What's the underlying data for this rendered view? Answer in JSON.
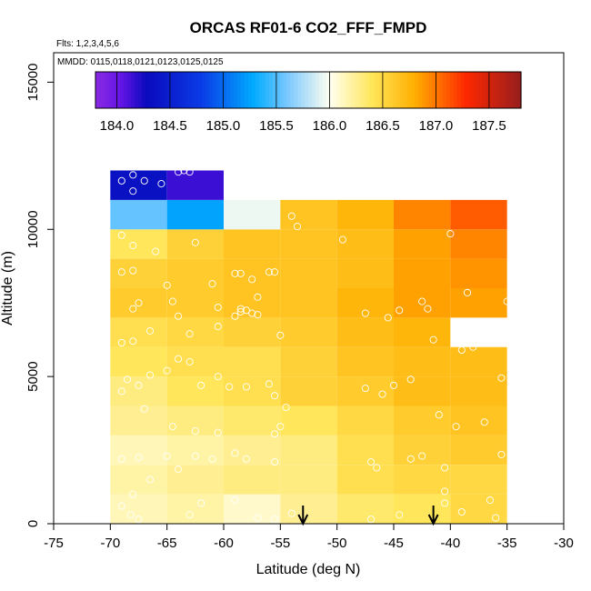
{
  "chart_data": {
    "type": "heatmap",
    "title": "ORCAS RF01-6 CO2_FFF_FMPD",
    "flights_note": "Flts: 1,2,3,4,5,6",
    "dates_note": "MMDD: 0115,0118,0121,0123,0125,0125",
    "xlabel": "Latitude (deg N)",
    "ylabel": "Altitude (m)",
    "xlim": [
      -75,
      -30
    ],
    "ylim": [
      0,
      16000
    ],
    "xticks": [
      -75,
      -70,
      -65,
      -60,
      -55,
      -50,
      -45,
      -40,
      -35,
      -30
    ],
    "xtick_labels": [
      "-75",
      "-70",
      "-65",
      "-60",
      "-55",
      "-50",
      "-45",
      "-40",
      "-35",
      "-30"
    ],
    "yticks": [
      0,
      5000,
      10000,
      15000
    ],
    "ytick_labels": [
      "0",
      "5000",
      "10000",
      "15000"
    ],
    "colorbar": {
      "min": 183.8,
      "max": 187.8,
      "ticks": [
        184.0,
        184.5,
        185.0,
        185.5,
        186.0,
        186.5,
        187.0,
        187.5
      ],
      "tick_labels": [
        "184.0",
        "184.5",
        "185.0",
        "185.5",
        "186.0",
        "186.5",
        "187.0",
        "187.5"
      ]
    },
    "lat_bins": [
      -70,
      -65,
      -60,
      -55,
      -50,
      -45,
      -40,
      -35
    ],
    "alt_bins": [
      0,
      1000,
      2000,
      3000,
      4000,
      5000,
      6000,
      7000,
      8000,
      9000,
      10000,
      11000,
      12000
    ],
    "cells": [
      [
        186.15,
        186.2,
        186.1,
        186.25,
        186.35,
        186.4,
        186.5
      ],
      [
        186.2,
        186.25,
        186.3,
        186.3,
        186.45,
        186.5,
        186.5
      ],
      [
        186.15,
        186.2,
        186.25,
        186.3,
        186.45,
        186.55,
        186.6
      ],
      [
        186.25,
        186.3,
        186.35,
        186.4,
        186.5,
        186.6,
        186.65
      ],
      [
        186.3,
        186.4,
        186.45,
        186.55,
        186.6,
        186.7,
        186.7
      ],
      [
        186.4,
        186.45,
        186.45,
        186.55,
        186.65,
        186.7,
        186.7
      ],
      [
        186.45,
        186.5,
        186.55,
        186.6,
        186.7,
        186.75,
        null
      ],
      [
        186.6,
        186.6,
        186.65,
        186.65,
        186.75,
        186.85,
        186.85
      ],
      [
        186.55,
        186.6,
        186.65,
        186.65,
        186.7,
        186.85,
        186.9
      ],
      [
        186.4,
        186.55,
        186.65,
        186.65,
        186.7,
        186.85,
        186.95
      ],
      [
        185.55,
        185.25,
        185.95,
        186.65,
        186.75,
        186.95,
        187.1
      ],
      [
        184.35,
        184.15,
        null,
        null,
        null,
        null,
        null
      ]
    ],
    "sample_points": [
      [
        -68.2,
        300
      ],
      [
        -67.5,
        150
      ],
      [
        -69,
        600
      ],
      [
        -68,
        1000
      ],
      [
        -66.5,
        1500
      ],
      [
        -63,
        300
      ],
      [
        -62,
        700
      ],
      [
        -57,
        200
      ],
      [
        -59,
        800
      ],
      [
        -55.5,
        150
      ],
      [
        -54,
        350
      ],
      [
        -47,
        150
      ],
      [
        -44.5,
        300
      ],
      [
        -40.5,
        700
      ],
      [
        -39,
        400
      ],
      [
        -36.5,
        800
      ],
      [
        -36,
        200
      ],
      [
        -69,
        2200
      ],
      [
        -67.5,
        2250
      ],
      [
        -65,
        2300
      ],
      [
        -64,
        1850
      ],
      [
        -62.5,
        2300
      ],
      [
        -61,
        2200
      ],
      [
        -59,
        2400
      ],
      [
        -58,
        2200
      ],
      [
        -55.5,
        2100
      ],
      [
        -47,
        2100
      ],
      [
        -46.5,
        1900
      ],
      [
        -43.5,
        2200
      ],
      [
        -42.5,
        2300
      ],
      [
        -40.5,
        1100
      ],
      [
        -40.5,
        1900
      ],
      [
        -35.5,
        2350
      ],
      [
        -67,
        3900
      ],
      [
        -64.5,
        3300
      ],
      [
        -62.5,
        3150
      ],
      [
        -60.5,
        3100
      ],
      [
        -55.5,
        3050
      ],
      [
        -55,
        3300
      ],
      [
        -54.5,
        3950
      ],
      [
        -41,
        3700
      ],
      [
        -39.5,
        3300
      ],
      [
        -37,
        3450
      ],
      [
        -35.5,
        4950
      ],
      [
        -69,
        4500
      ],
      [
        -68.5,
        4900
      ],
      [
        -67.5,
        4700
      ],
      [
        -66.5,
        5050
      ],
      [
        -65,
        5200
      ],
      [
        -64,
        5600
      ],
      [
        -63,
        5500
      ],
      [
        -62,
        4700
      ],
      [
        -60.5,
        5000
      ],
      [
        -59.5,
        4650
      ],
      [
        -58,
        4650
      ],
      [
        -56,
        4750
      ],
      [
        -55.5,
        4350
      ],
      [
        -47.5,
        4600
      ],
      [
        -46,
        4400
      ],
      [
        -45,
        4700
      ],
      [
        -43.5,
        4900
      ],
      [
        -69,
        6150
      ],
      [
        -68,
        6200
      ],
      [
        -66.5,
        6550
      ],
      [
        -63,
        6450
      ],
      [
        -60.5,
        6700
      ],
      [
        -59,
        7050
      ],
      [
        -58.5,
        7200
      ],
      [
        -57,
        7100
      ],
      [
        -55,
        6400
      ],
      [
        -47.5,
        7150
      ],
      [
        -45.5,
        7000
      ],
      [
        -44.5,
        7250
      ],
      [
        -42.5,
        7550
      ],
      [
        -41.5,
        6250
      ],
      [
        -38,
        6000
      ],
      [
        -39,
        5900
      ],
      [
        -68,
        7300
      ],
      [
        -67.5,
        7500
      ],
      [
        -64.5,
        7550
      ],
      [
        -64,
        7050
      ],
      [
        -60.5,
        7350
      ],
      [
        -58.5,
        7300
      ],
      [
        -58,
        7250
      ],
      [
        -57.5,
        7150
      ],
      [
        -57,
        7700
      ],
      [
        -42,
        7300
      ],
      [
        -38.5,
        7850
      ],
      [
        -35,
        7550
      ],
      [
        -34.5,
        7800
      ],
      [
        -34,
        7800
      ],
      [
        -33.5,
        8100
      ],
      [
        -69,
        8550
      ],
      [
        -68,
        8600
      ],
      [
        -65,
        8100
      ],
      [
        -61,
        8150
      ],
      [
        -59,
        8500
      ],
      [
        -58.5,
        8500
      ],
      [
        -57.5,
        8300
      ],
      [
        -56,
        8550
      ],
      [
        -55.5,
        8550
      ],
      [
        -49.5,
        9650
      ],
      [
        -40,
        9850
      ],
      [
        -34.5,
        8100
      ],
      [
        -69,
        9800
      ],
      [
        -68,
        9450
      ],
      [
        -66,
        9250
      ],
      [
        -62.5,
        9550
      ],
      [
        -54,
        10450
      ],
      [
        -53.5,
        10100
      ],
      [
        -33.5,
        10050
      ],
      [
        -69,
        11650
      ],
      [
        -68,
        11850
      ],
      [
        -68,
        11300
      ],
      [
        -67,
        11650
      ],
      [
        -65.5,
        11550
      ],
      [
        -64,
        11950
      ],
      [
        -63,
        11950
      ],
      [
        -63.5,
        12000
      ]
    ],
    "arrows_lat": [
      -53,
      -41.5
    ]
  }
}
